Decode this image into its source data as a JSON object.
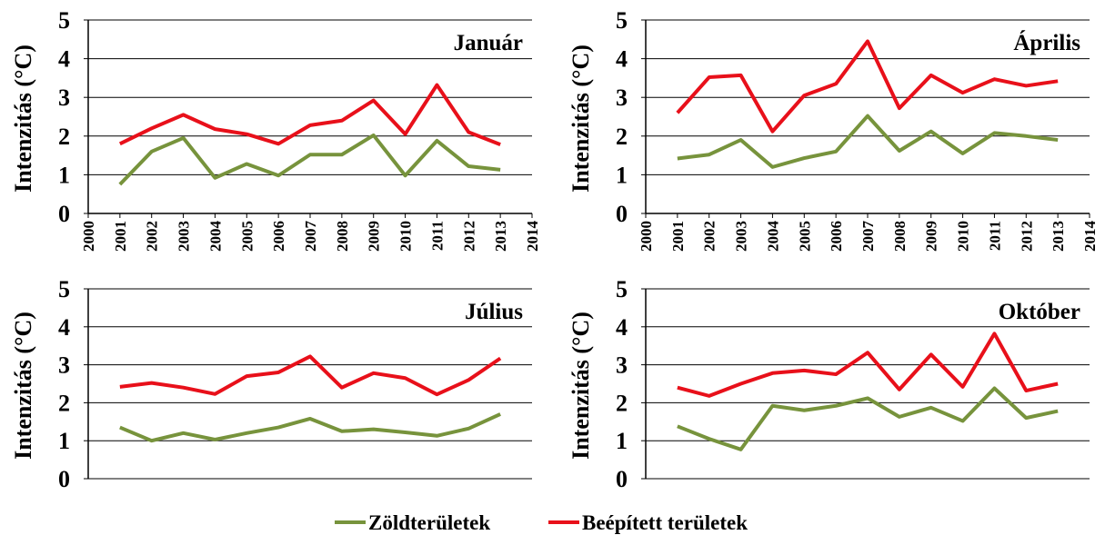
{
  "chart_data": [
    {
      "type": "line",
      "title": "Január",
      "y_label": "Intenzitás (°C)",
      "x": [
        2001,
        2002,
        2003,
        2004,
        2005,
        2006,
        2007,
        2008,
        2009,
        2010,
        2011,
        2012,
        2013
      ],
      "xlim": [
        2000,
        2014
      ],
      "xticks": [
        2000,
        2001,
        2002,
        2003,
        2004,
        2005,
        2006,
        2007,
        2008,
        2009,
        2010,
        2011,
        2012,
        2013,
        2014
      ],
      "ylim": [
        0,
        5
      ],
      "yticks": [
        0,
        1,
        2,
        3,
        4,
        5
      ],
      "grid": true,
      "series": [
        {
          "color": "#77933c",
          "values": [
            0.75,
            1.6,
            1.95,
            0.92,
            1.28,
            0.98,
            1.52,
            1.52,
            2.02,
            0.98,
            1.88,
            1.22,
            1.13
          ]
        },
        {
          "color": "#e8101a",
          "values": [
            1.8,
            2.2,
            2.55,
            2.18,
            2.05,
            1.8,
            2.28,
            2.4,
            2.92,
            2.05,
            3.32,
            2.1,
            1.78
          ]
        }
      ]
    },
    {
      "type": "line",
      "title": "Április",
      "y_label": "Intenzitás (°C)",
      "x": [
        2001,
        2002,
        2003,
        2004,
        2005,
        2006,
        2007,
        2008,
        2009,
        2010,
        2011,
        2012,
        2013
      ],
      "xlim": [
        2000,
        2014
      ],
      "xticks": [
        2000,
        2001,
        2002,
        2003,
        2004,
        2005,
        2006,
        2007,
        2008,
        2009,
        2010,
        2011,
        2012,
        2013,
        2014
      ],
      "ylim": [
        0,
        5
      ],
      "yticks": [
        0,
        1,
        2,
        3,
        4,
        5
      ],
      "grid": true,
      "series": [
        {
          "color": "#77933c",
          "values": [
            1.42,
            1.52,
            1.9,
            1.2,
            1.43,
            1.6,
            2.52,
            1.62,
            2.12,
            1.55,
            2.08,
            2.0,
            1.9
          ]
        },
        {
          "color": "#e8101a",
          "values": [
            2.6,
            3.52,
            3.57,
            2.12,
            3.05,
            3.35,
            4.45,
            2.72,
            3.57,
            3.12,
            3.47,
            3.3,
            3.42
          ]
        }
      ]
    },
    {
      "type": "line",
      "title": "Július",
      "y_label": "Intenzitás (°C)",
      "x": [
        2001,
        2002,
        2003,
        2004,
        2005,
        2006,
        2007,
        2008,
        2009,
        2010,
        2011,
        2012,
        2013
      ],
      "xlim": [
        2000,
        2014
      ],
      "ylim": [
        0,
        5
      ],
      "yticks": [
        0,
        1,
        2,
        3,
        4,
        5
      ],
      "grid": true,
      "series": [
        {
          "color": "#77933c",
          "values": [
            1.35,
            1.0,
            1.2,
            1.03,
            1.2,
            1.35,
            1.58,
            1.25,
            1.3,
            1.22,
            1.13,
            1.32,
            1.7
          ]
        },
        {
          "color": "#e8101a",
          "values": [
            2.42,
            2.52,
            2.4,
            2.23,
            2.7,
            2.8,
            3.22,
            2.4,
            2.78,
            2.65,
            2.22,
            2.6,
            3.17
          ]
        }
      ]
    },
    {
      "type": "line",
      "title": "Október",
      "y_label": "Intenzitás (°C)",
      "x": [
        2001,
        2002,
        2003,
        2004,
        2005,
        2006,
        2007,
        2008,
        2009,
        2010,
        2011,
        2012,
        2013
      ],
      "xlim": [
        2000,
        2014
      ],
      "ylim": [
        0,
        5
      ],
      "yticks": [
        0,
        1,
        2,
        3,
        4,
        5
      ],
      "grid": true,
      "series": [
        {
          "color": "#77933c",
          "values": [
            1.38,
            1.05,
            0.77,
            1.92,
            1.8,
            1.92,
            2.12,
            1.63,
            1.87,
            1.52,
            2.38,
            1.6,
            1.78
          ]
        },
        {
          "color": "#e8101a",
          "values": [
            2.4,
            2.18,
            2.5,
            2.78,
            2.85,
            2.75,
            3.32,
            2.35,
            3.27,
            2.42,
            3.82,
            2.32,
            2.5
          ]
        }
      ]
    }
  ],
  "legend": {
    "items": [
      {
        "name": "Zöldterületek",
        "color": "#77933c"
      },
      {
        "name": "Beépített területek",
        "color": "#e8101a"
      }
    ]
  }
}
